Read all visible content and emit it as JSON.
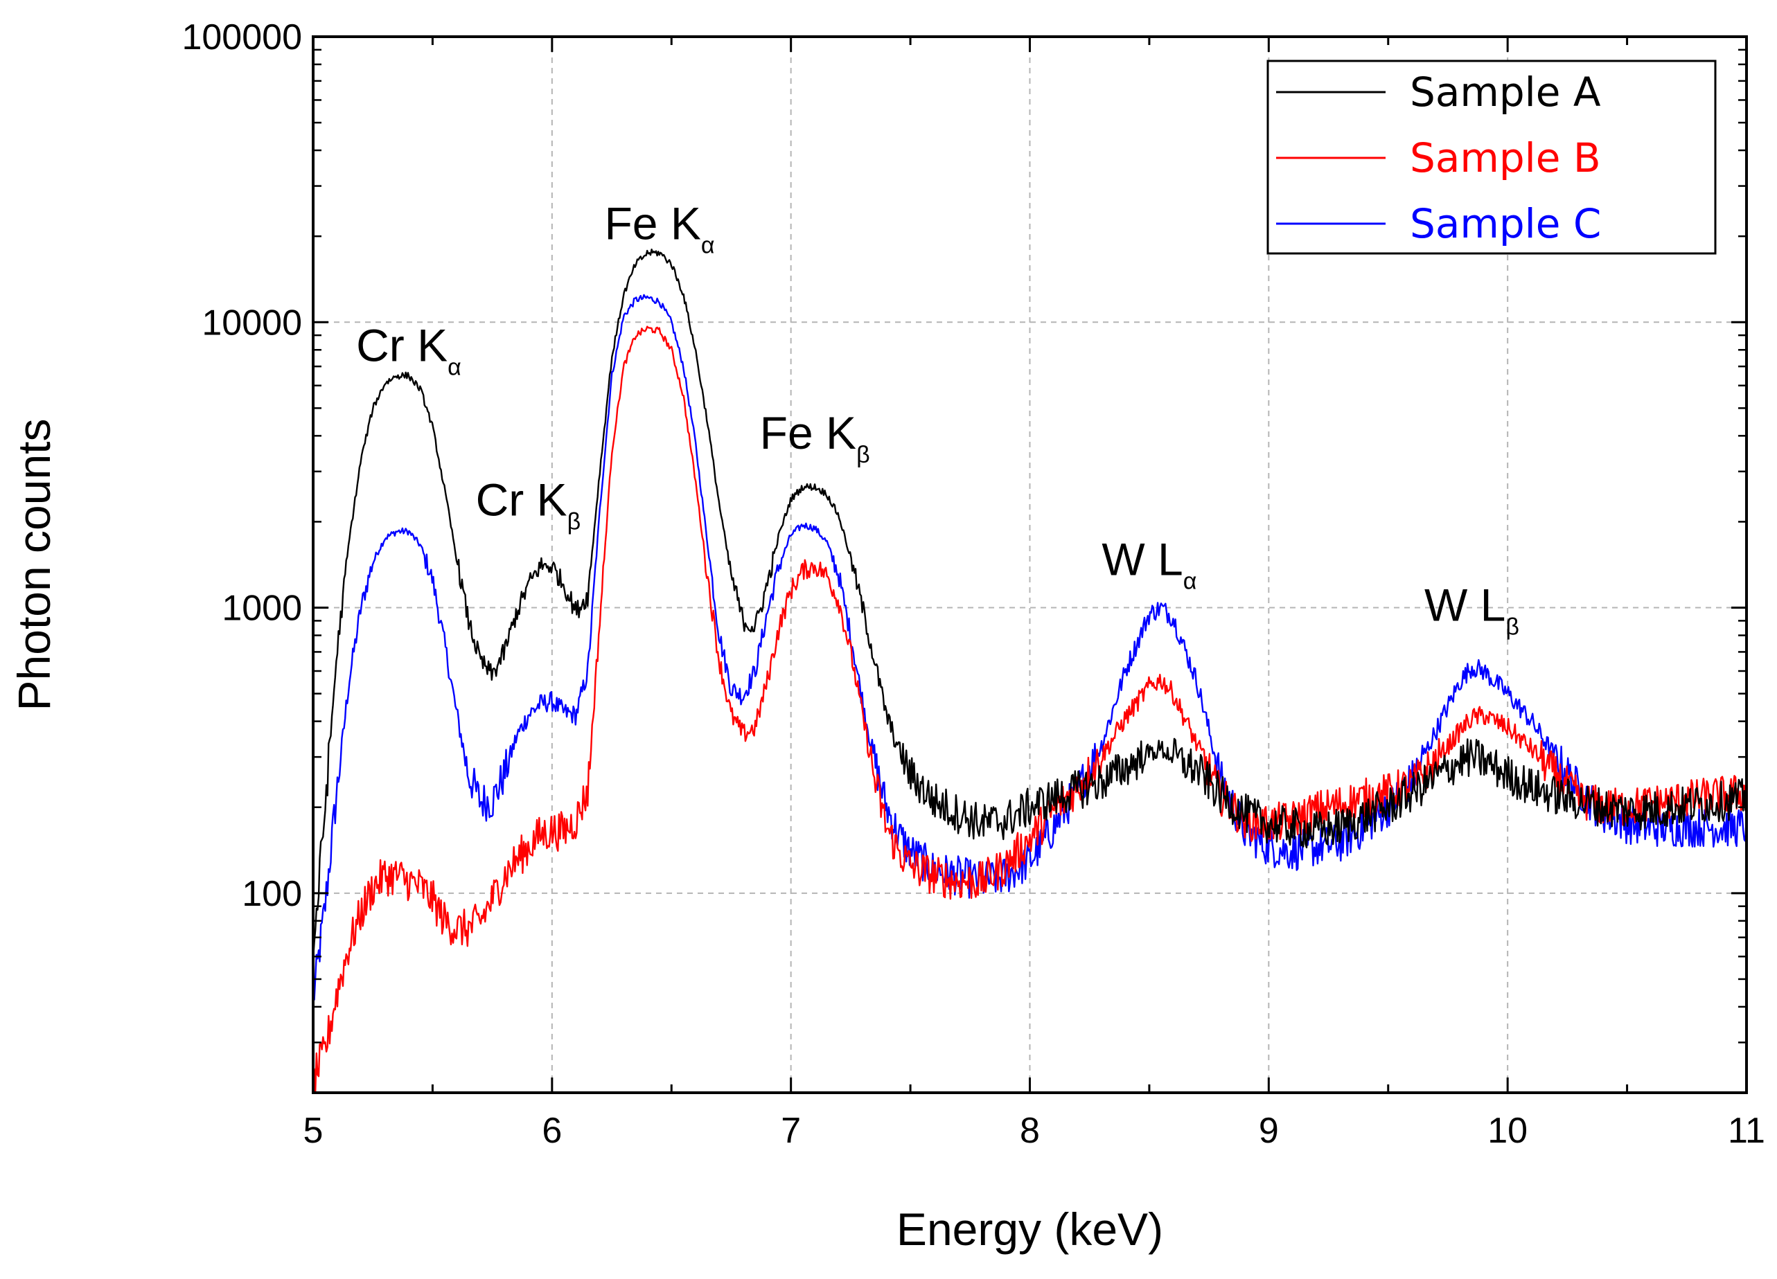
{
  "chart_data": {
    "type": "line",
    "title": "",
    "xlabel": "Energy (keV)",
    "ylabel": "Photon counts",
    "xlim": [
      5,
      11
    ],
    "ylim": [
      20,
      100000
    ],
    "yscale": "log",
    "grid": true,
    "legend_position": "top-right",
    "x_ticks": [
      5,
      6,
      7,
      8,
      9,
      10,
      11
    ],
    "x_tick_labels": [
      "5",
      "6",
      "7",
      "8",
      "9",
      "10",
      "11"
    ],
    "y_ticks": [
      100,
      1000,
      10000,
      100000
    ],
    "y_tick_labels": [
      "100",
      "1000",
      "10000",
      "100000"
    ],
    "x": [
      5.0,
      5.05,
      5.1,
      5.15,
      5.2,
      5.25,
      5.3,
      5.35,
      5.4,
      5.45,
      5.5,
      5.55,
      5.6,
      5.65,
      5.7,
      5.75,
      5.8,
      5.85,
      5.9,
      5.95,
      6.0,
      6.05,
      6.1,
      6.15,
      6.2,
      6.25,
      6.3,
      6.35,
      6.4,
      6.45,
      6.5,
      6.55,
      6.6,
      6.65,
      6.7,
      6.75,
      6.8,
      6.85,
      6.9,
      6.95,
      7.0,
      7.05,
      7.1,
      7.15,
      7.2,
      7.25,
      7.3,
      7.35,
      7.4,
      7.45,
      7.5,
      7.6,
      7.7,
      7.8,
      7.9,
      8.0,
      8.1,
      8.2,
      8.3,
      8.4,
      8.5,
      8.55,
      8.6,
      8.7,
      8.8,
      8.9,
      9.0,
      9.1,
      9.2,
      9.3,
      9.4,
      9.5,
      9.6,
      9.7,
      9.8,
      9.85,
      9.9,
      10.0,
      10.1,
      10.2,
      10.3,
      10.4,
      10.5,
      10.6,
      10.7,
      10.8,
      10.9,
      11.0
    ],
    "series": [
      {
        "name": "Sample A",
        "color": "#000000",
        "values": [
          60,
          200,
          700,
          1700,
          3300,
          5000,
          6100,
          6500,
          6500,
          5800,
          4300,
          2600,
          1500,
          900,
          650,
          580,
          700,
          950,
          1200,
          1400,
          1400,
          1200,
          970,
          1100,
          3000,
          7500,
          12500,
          16000,
          17500,
          17500,
          16000,
          12500,
          8000,
          4500,
          2300,
          1300,
          900,
          850,
          1200,
          1800,
          2400,
          2650,
          2650,
          2500,
          2100,
          1500,
          1000,
          650,
          420,
          320,
          260,
          210,
          190,
          175,
          180,
          200,
          215,
          230,
          245,
          275,
          310,
          320,
          300,
          270,
          220,
          190,
          175,
          170,
          165,
          170,
          185,
          200,
          225,
          255,
          290,
          300,
          290,
          260,
          235,
          220,
          210,
          200,
          195,
          195,
          200,
          205,
          210,
          215
        ]
      },
      {
        "name": "Sample B",
        "color": "#ff0000",
        "values": [
          22,
          28,
          45,
          65,
          85,
          105,
          115,
          115,
          110,
          105,
          95,
          80,
          75,
          75,
          80,
          95,
          115,
          130,
          145,
          160,
          165,
          165,
          180,
          230,
          900,
          3500,
          7000,
          9000,
          9500,
          9300,
          8000,
          5500,
          2800,
          1300,
          650,
          420,
          360,
          380,
          550,
          850,
          1150,
          1350,
          1400,
          1300,
          1050,
          700,
          420,
          250,
          170,
          140,
          125,
          115,
          110,
          110,
          125,
          155,
          195,
          235,
          300,
          410,
          530,
          560,
          500,
          330,
          220,
          180,
          175,
          180,
          195,
          205,
          215,
          225,
          240,
          290,
          370,
          410,
          420,
          380,
          320,
          260,
          215,
          200,
          200,
          205,
          210,
          215,
          220,
          225
        ]
      },
      {
        "name": "Sample C",
        "color": "#0000ff",
        "values": [
          42,
          90,
          230,
          550,
          1000,
          1450,
          1750,
          1850,
          1850,
          1650,
          1250,
          750,
          430,
          260,
          210,
          210,
          260,
          350,
          420,
          460,
          470,
          430,
          420,
          600,
          2200,
          6500,
          10500,
          12000,
          12200,
          11800,
          10000,
          7000,
          3800,
          1700,
          800,
          520,
          490,
          600,
          950,
          1400,
          1800,
          1950,
          1900,
          1700,
          1300,
          800,
          470,
          290,
          200,
          160,
          140,
          120,
          115,
          110,
          115,
          130,
          170,
          230,
          330,
          600,
          950,
          1000,
          920,
          550,
          250,
          165,
          145,
          140,
          145,
          150,
          170,
          200,
          250,
          370,
          550,
          620,
          600,
          500,
          400,
          300,
          230,
          190,
          175,
          170,
          170,
          170,
          170,
          170
        ]
      }
    ],
    "annotations": [
      {
        "main": "Cr K",
        "sub": "α",
        "x": 5.4,
        "y": 7300
      },
      {
        "main": "Cr K",
        "sub": "β",
        "x": 5.9,
        "y": 2100
      },
      {
        "main": "Fe K",
        "sub": "α",
        "x": 6.45,
        "y": 19500
      },
      {
        "main": "Fe K",
        "sub": "β",
        "x": 7.1,
        "y": 3600
      },
      {
        "main": "W L",
        "sub": "α",
        "x": 8.5,
        "y": 1300
      },
      {
        "main": "W L",
        "sub": "β",
        "x": 9.85,
        "y": 900
      }
    ]
  }
}
